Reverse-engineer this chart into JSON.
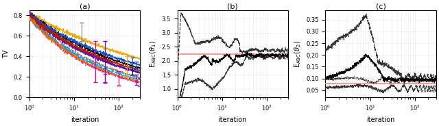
{
  "figsize": [
    6.4,
    1.84
  ],
  "dpi": 100,
  "titles": [
    "(a)",
    "(b)",
    "(c)"
  ],
  "xlabel": "iteration",
  "panel_a": {
    "ylabel": "TV",
    "ylim": [
      0,
      0.85
    ],
    "yticks": [
      0,
      0.2,
      0.4,
      0.6,
      0.8
    ],
    "xlim": [
      1,
      300
    ],
    "lines": [
      {
        "color": "#f0a500",
        "ls": "-",
        "start": 0.82,
        "end": 0.2,
        "decay": 0.55,
        "seed": 1
      },
      {
        "color": "#cc00cc",
        "ls": "--",
        "start": 0.8,
        "end": 0.12,
        "decay": 0.9,
        "seed": 2
      },
      {
        "color": "#000000",
        "ls": "-",
        "start": 0.82,
        "end": 0.2,
        "decay": 0.75,
        "seed": 3
      },
      {
        "color": "#555555",
        "ls": "-",
        "start": 0.8,
        "end": 0.18,
        "decay": 0.8,
        "seed": 4
      },
      {
        "color": "#888888",
        "ls": "--",
        "start": 0.78,
        "end": 0.15,
        "decay": 0.85,
        "seed": 5
      },
      {
        "color": "#1155cc",
        "ls": "-",
        "start": 0.8,
        "end": 0.22,
        "decay": 0.72,
        "seed": 6
      },
      {
        "color": "#00aadd",
        "ls": "--",
        "start": 0.78,
        "end": 0.14,
        "decay": 0.88,
        "seed": 7
      },
      {
        "color": "#7700aa",
        "ls": "-",
        "start": 0.8,
        "end": 0.17,
        "decay": 0.78,
        "seed": 8
      },
      {
        "color": "#aa2200",
        "ls": "-",
        "start": 0.79,
        "end": 0.19,
        "decay": 0.77,
        "seed": 9
      },
      {
        "color": "#ff6600",
        "ls": "--",
        "start": 0.78,
        "end": 0.13,
        "decay": 0.91,
        "seed": 10
      }
    ],
    "errorbars": [
      {
        "x": 15,
        "color": "#888888",
        "mid": 0.68,
        "lo": 0.13,
        "hi": 0.05
      },
      {
        "x": 30,
        "color": "#cc00cc",
        "mid": 0.35,
        "lo": 0.2,
        "hi": 0.2
      },
      {
        "x": 50,
        "color": "#cc00cc",
        "mid": 0.185,
        "lo": 0.04,
        "hi": 0.04
      },
      {
        "x": 50,
        "color": "#7700aa",
        "mid": 0.48,
        "lo": 0.34,
        "hi": 0.07
      },
      {
        "x": 100,
        "color": "#cc0066",
        "mid": 0.185,
        "lo": 0.07,
        "hi": 0.07
      },
      {
        "x": 150,
        "color": "#f0a500",
        "mid": 0.3,
        "lo": 0.1,
        "hi": 0.1
      },
      {
        "x": 200,
        "color": "#000000",
        "mid": 0.28,
        "lo": 0.06,
        "hi": 0.06
      },
      {
        "x": 200,
        "color": "#1155cc",
        "mid": 0.35,
        "lo": 0.06,
        "hi": 0.04
      },
      {
        "x": 250,
        "color": "#7700aa",
        "mid": 0.17,
        "lo": 0.05,
        "hi": 0.05
      },
      {
        "x": 250,
        "color": "#1155cc",
        "mid": 0.3,
        "lo": 0.04,
        "hi": 0.05
      },
      {
        "x": 300,
        "color": "#cc0066",
        "mid": 0.15,
        "lo": 0.04,
        "hi": 0.04
      }
    ]
  },
  "panel_b": {
    "ylabel": "E_ABC(theta1)",
    "ylim": [
      0.7,
      3.8
    ],
    "yticks": [
      1.0,
      1.5,
      2.0,
      2.5,
      3.0,
      3.5
    ],
    "xlim": [
      1,
      300
    ],
    "ref_line": 2.25,
    "ref_color": "#ff8888"
  },
  "panel_c": {
    "ylabel": "E_ABC(theta2)",
    "ylim": [
      0.02,
      0.39
    ],
    "yticks": [
      0.05,
      0.1,
      0.15,
      0.2,
      0.25,
      0.3,
      0.35
    ],
    "xlim": [
      1,
      300
    ],
    "ref_line": 0.08,
    "ref_color": "#ff8888"
  }
}
